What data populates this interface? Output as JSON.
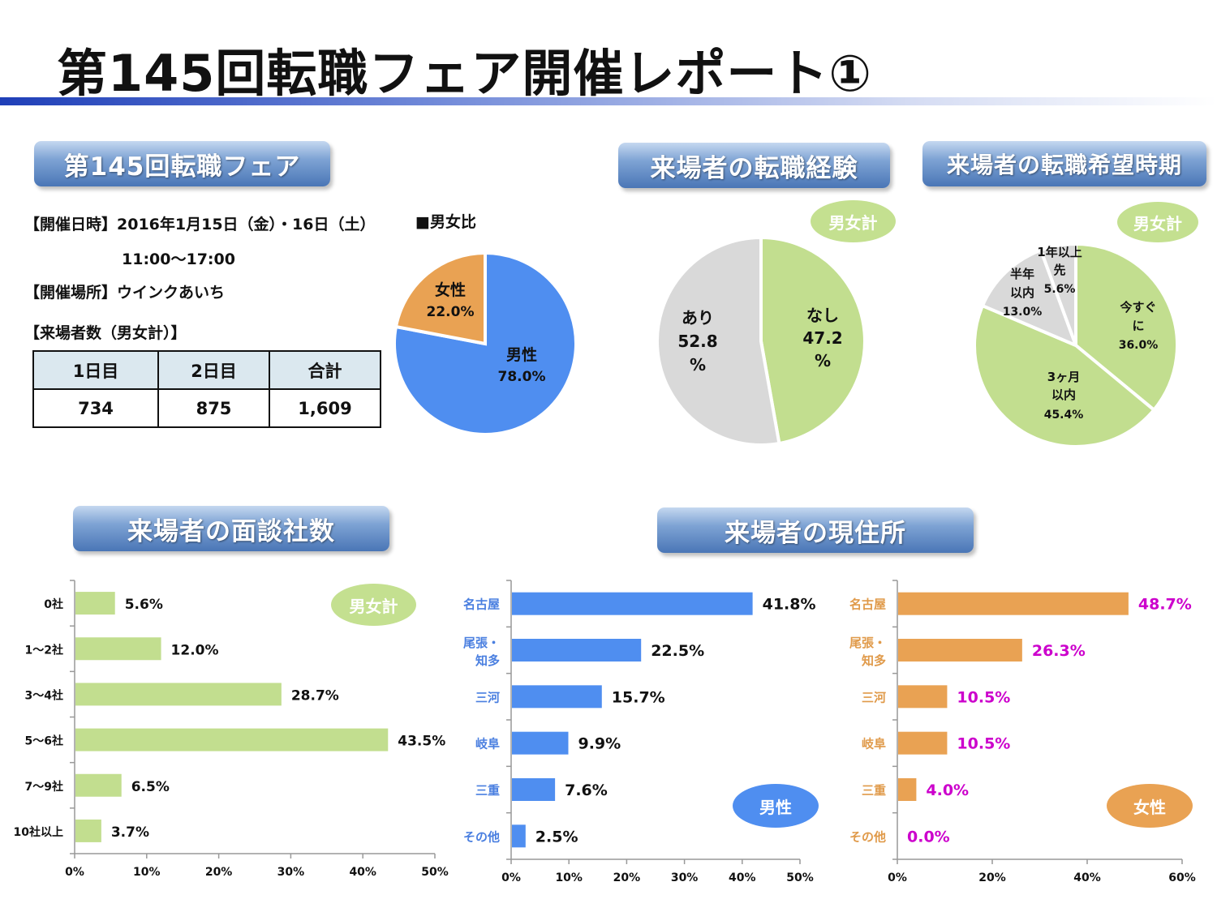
{
  "title": "第145回転職フェア開催レポート①",
  "banners": {
    "fair": "第145回転職フェア",
    "experience": "来場者の転職経験",
    "timing": "来場者の転職希望時期",
    "interviews": "来場者の面談社数",
    "residence": "来場者の現住所"
  },
  "info": {
    "date": "【開催日時】2016年1月15日（金）・16日（土）",
    "time": "11:00〜17:00",
    "venue": "【開催場所】ウインクあいち",
    "count_heading": "【来場者数（男女計）】"
  },
  "visitor_table": {
    "headers": [
      "1日目",
      "2日目",
      "合計"
    ],
    "values": [
      "734",
      "875",
      "1,609"
    ]
  },
  "badges": {
    "total": "男女計",
    "male": "男性",
    "female": "女性"
  },
  "colors": {
    "blue": "#4f8ef0",
    "orange": "#e9a253",
    "green": "#c2de8f",
    "gray": "#d9d9d9",
    "magenta": "#cc00cc"
  },
  "chart_data": [
    {
      "type": "pie",
      "title": "■男女比",
      "labels": [
        "男性",
        "女性"
      ],
      "values": [
        78.0,
        22.0
      ],
      "value_labels": [
        "78.0%",
        "22.0%"
      ]
    },
    {
      "type": "pie",
      "labels": [
        "なし",
        "あり"
      ],
      "values": [
        47.2,
        52.8
      ],
      "value_labels": [
        "47.2",
        "52.8"
      ],
      "percent_sign": "%"
    },
    {
      "type": "pie",
      "labels": [
        "今すぐに",
        "3ヶ月以内",
        "半年以内",
        "1年以上先"
      ],
      "label_lines": [
        [
          "今すぐ",
          "に"
        ],
        [
          "3ヶ月",
          "以内"
        ],
        [
          "半年",
          "以内"
        ],
        [
          "1年以上",
          "先"
        ]
      ],
      "values": [
        36.0,
        45.4,
        13.0,
        5.6
      ],
      "value_labels": [
        "36.0%",
        "45.4%",
        "13.0%",
        "5.6%"
      ]
    },
    {
      "type": "bar",
      "orientation": "horizontal",
      "categories": [
        "0社",
        "1〜2社",
        "3〜4社",
        "5〜6社",
        "7〜9社",
        "10社以上"
      ],
      "values": [
        5.6,
        12.0,
        28.7,
        43.5,
        6.5,
        3.7
      ],
      "value_labels": [
        "5.6%",
        "12.0%",
        "28.7%",
        "43.5%",
        "6.5%",
        "3.7%"
      ],
      "xlim": [
        0,
        50
      ],
      "xticks": [
        "0%",
        "10%",
        "20%",
        "30%",
        "40%",
        "50%"
      ]
    },
    {
      "type": "bar",
      "orientation": "horizontal",
      "categories": [
        "名古屋",
        "尾張・知多",
        "三河",
        "岐阜",
        "三重",
        "その他"
      ],
      "category_lines": [
        [
          "名古屋"
        ],
        [
          "尾張・",
          "知多"
        ],
        [
          "三河"
        ],
        [
          "岐阜"
        ],
        [
          "三重"
        ],
        [
          "その他"
        ]
      ],
      "values": [
        41.8,
        22.5,
        15.7,
        9.9,
        7.6,
        2.5
      ],
      "value_labels": [
        "41.8%",
        "22.5%",
        "15.7%",
        "9.9%",
        "7.6%",
        "2.5%"
      ],
      "xlim": [
        0,
        50
      ],
      "xticks": [
        "0%",
        "10%",
        "20%",
        "30%",
        "40%",
        "50%"
      ]
    },
    {
      "type": "bar",
      "orientation": "horizontal",
      "categories": [
        "名古屋",
        "尾張・知多",
        "三河",
        "岐阜",
        "三重",
        "その他"
      ],
      "category_lines": [
        [
          "名古屋"
        ],
        [
          "尾張・",
          "知多"
        ],
        [
          "三河"
        ],
        [
          "岐阜"
        ],
        [
          "三重"
        ],
        [
          "その他"
        ]
      ],
      "values": [
        48.7,
        26.3,
        10.5,
        10.5,
        4.0,
        0.0
      ],
      "value_labels": [
        "48.7%",
        "26.3%",
        "10.5%",
        "10.5%",
        "4.0%",
        "0.0%"
      ],
      "xlim": [
        0,
        60
      ],
      "xticks": [
        "0%",
        "20%",
        "40%",
        "60%"
      ]
    }
  ]
}
